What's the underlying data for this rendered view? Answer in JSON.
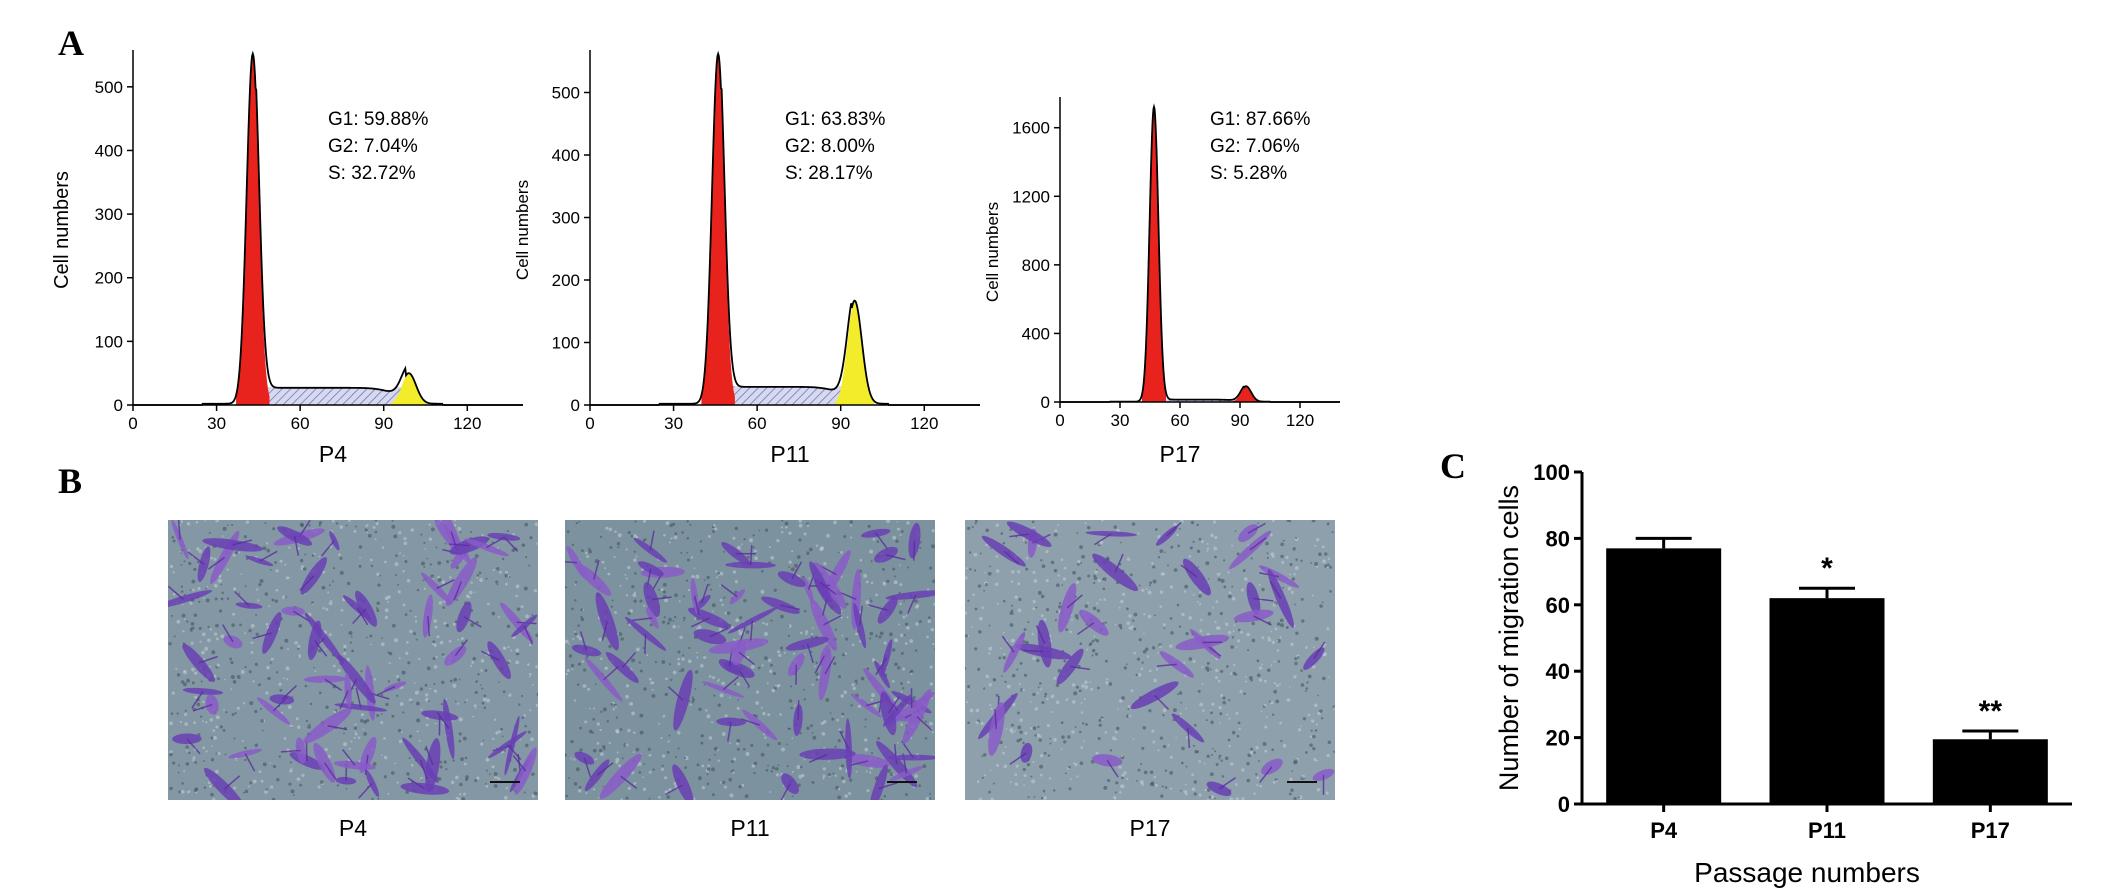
{
  "panels": {
    "a": "A",
    "b": "B",
    "c": "C"
  },
  "histograms": [
    {
      "label": "P4",
      "ylabel": "Cell numbers",
      "ymax": 550,
      "yticks": [
        0,
        100,
        200,
        300,
        400,
        500
      ],
      "xticks": [
        0,
        30,
        60,
        90,
        120
      ],
      "stats": [
        "G1: 59.88%",
        "G2: 7.04%",
        "S: 32.72%"
      ],
      "g1_peak": 43,
      "g1_height": 550,
      "g2_peak": 99,
      "g2_height": 48,
      "s_level": 25,
      "s_color": "#b8bde0"
    },
    {
      "label": "P11",
      "ylabel": "Cell numbers",
      "ymax": 560,
      "yticks": [
        0,
        100,
        200,
        300,
        400,
        500
      ],
      "xticks": [
        0,
        30,
        60,
        90,
        120
      ],
      "stats": [
        "G1: 63.83%",
        "G2: 8.00%",
        "S: 28.17%"
      ],
      "g1_peak": 46,
      "g1_height": 560,
      "g2_peak": 95,
      "g2_height": 165,
      "s_level": 27,
      "s_color": "#b8bde0"
    },
    {
      "label": "P17",
      "ylabel": "Cell numbers",
      "ymax": 1750,
      "yticks": [
        0,
        400,
        800,
        1200,
        1600
      ],
      "xticks": [
        0,
        30,
        60,
        90,
        120
      ],
      "stats": [
        "G1: 87.66%",
        "G2: 7.06%",
        "S: 5.28%"
      ],
      "g1_peak": 47,
      "g1_height": 1720,
      "g2_peak": 93,
      "g2_height": 90,
      "s_level": 12,
      "s_color": "#b8bde0"
    }
  ],
  "colors": {
    "g1": "#e8231e",
    "g2": "#f3ec2a",
    "bar": "#000000"
  },
  "micrographs": [
    {
      "label": "P4",
      "density": 0.9,
      "bg": "#8397a4"
    },
    {
      "label": "P11",
      "density": 1.0,
      "bg": "#7d929f"
    },
    {
      "label": "P17",
      "density": 0.45,
      "bg": "#8da0ac"
    }
  ],
  "chart_data": {
    "type": "bar",
    "categories": [
      "P4",
      "P11",
      "P17"
    ],
    "values": [
      77,
      62,
      19.5
    ],
    "errors": [
      3,
      3,
      2.5
    ],
    "significance": [
      "",
      "*",
      "**"
    ],
    "xlabel": "Passage numbers",
    "ylabel": "Number of migration cells",
    "ylim": [
      0,
      100
    ],
    "yticks": [
      0,
      20,
      40,
      60,
      80,
      100
    ]
  }
}
